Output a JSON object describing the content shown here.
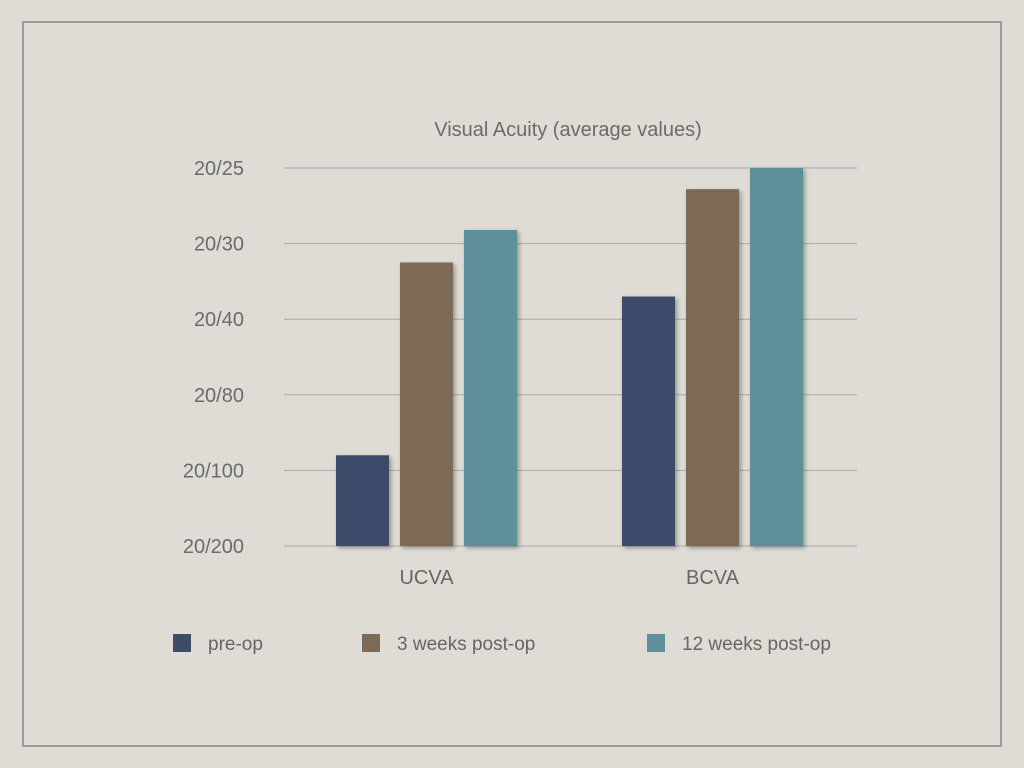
{
  "chart_data": {
    "type": "bar",
    "title": "Visual Acuity (average values)",
    "xlabel": "",
    "ylabel": "",
    "categories": [
      "UCVA",
      "BCVA"
    ],
    "y_ticks": [
      "20/200",
      "20/100",
      "20/80",
      "20/40",
      "20/30",
      "20/25"
    ],
    "y_tick_positions": [
      0,
      1,
      2,
      3,
      4,
      5
    ],
    "ylim": [
      0,
      5
    ],
    "grid": true,
    "legend_position": "bottom",
    "series": [
      {
        "name": "pre-op",
        "color": "#3e4c6a",
        "values": [
          1.2,
          3.3
        ]
      },
      {
        "name": "3 weeks post-op",
        "color": "#7d6a55",
        "values": [
          3.75,
          4.72
        ]
      },
      {
        "name": "12 weeks post-op",
        "color": "#5e8f9a",
        "values": [
          4.18,
          5.0
        ]
      }
    ]
  }
}
